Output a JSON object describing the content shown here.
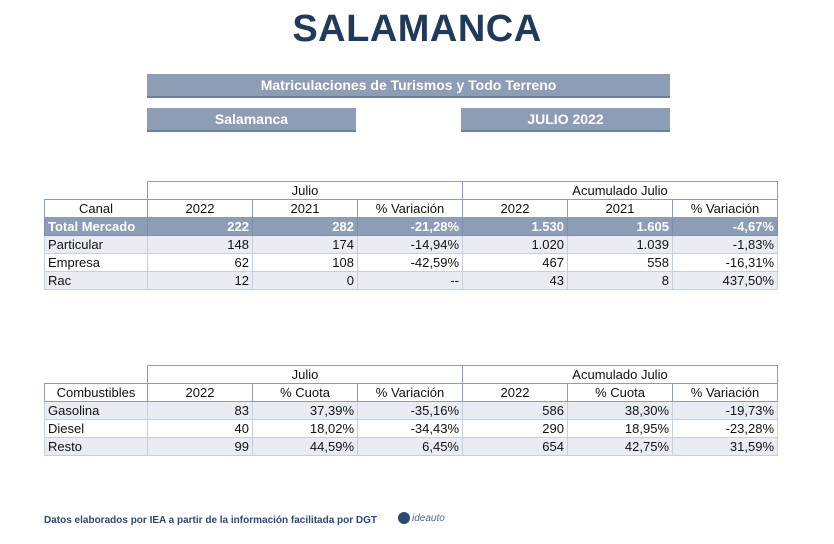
{
  "title": "SALAMANCA",
  "header": {
    "main": "Matriculaciones de Turismos y Todo Terreno",
    "province": "Salamanca",
    "date": "JULIO 2022"
  },
  "table_canal": {
    "group_month": "Julio",
    "group_cum": "Acumulado Julio",
    "headers": [
      "Canal",
      "2022",
      "2021",
      "% Variación",
      "2022",
      "2021",
      "% Variación"
    ],
    "rows": [
      [
        "Total Mercado",
        "222",
        "282",
        "-21,28%",
        "1.530",
        "1.605",
        "-4,67%"
      ],
      [
        "Particular",
        "148",
        "174",
        "-14,94%",
        "1.020",
        "1.039",
        "-1,83%"
      ],
      [
        "Empresa",
        "62",
        "108",
        "-42,59%",
        "467",
        "558",
        "-16,31%"
      ],
      [
        "Rac",
        "12",
        "0",
        "--",
        "43",
        "8",
        "437,50%"
      ]
    ]
  },
  "table_fuel": {
    "group_month": "Julio",
    "group_cum": "Acumulado Julio",
    "headers": [
      "Combustibles",
      "2022",
      "% Cuota",
      "% Variación",
      "2022",
      "% Cuota",
      "% Variación"
    ],
    "rows": [
      [
        "Gasolina",
        "83",
        "37,39%",
        "-35,16%",
        "586",
        "38,30%",
        "-19,73%"
      ],
      [
        "Diesel",
        "40",
        "18,02%",
        "-34,43%",
        "290",
        "18,95%",
        "-23,28%"
      ],
      [
        "Resto",
        "99",
        "44,59%",
        "6,45%",
        "654",
        "42,75%",
        "31,59%"
      ]
    ]
  },
  "footer": {
    "note": "Datos elaborados por IEA a partir de la información facilitada por DGT",
    "logo": "ideauto"
  },
  "colors": {
    "title": "#1f3a5a",
    "bar": "#8d9db5",
    "alt_row": "#e9edf3"
  }
}
